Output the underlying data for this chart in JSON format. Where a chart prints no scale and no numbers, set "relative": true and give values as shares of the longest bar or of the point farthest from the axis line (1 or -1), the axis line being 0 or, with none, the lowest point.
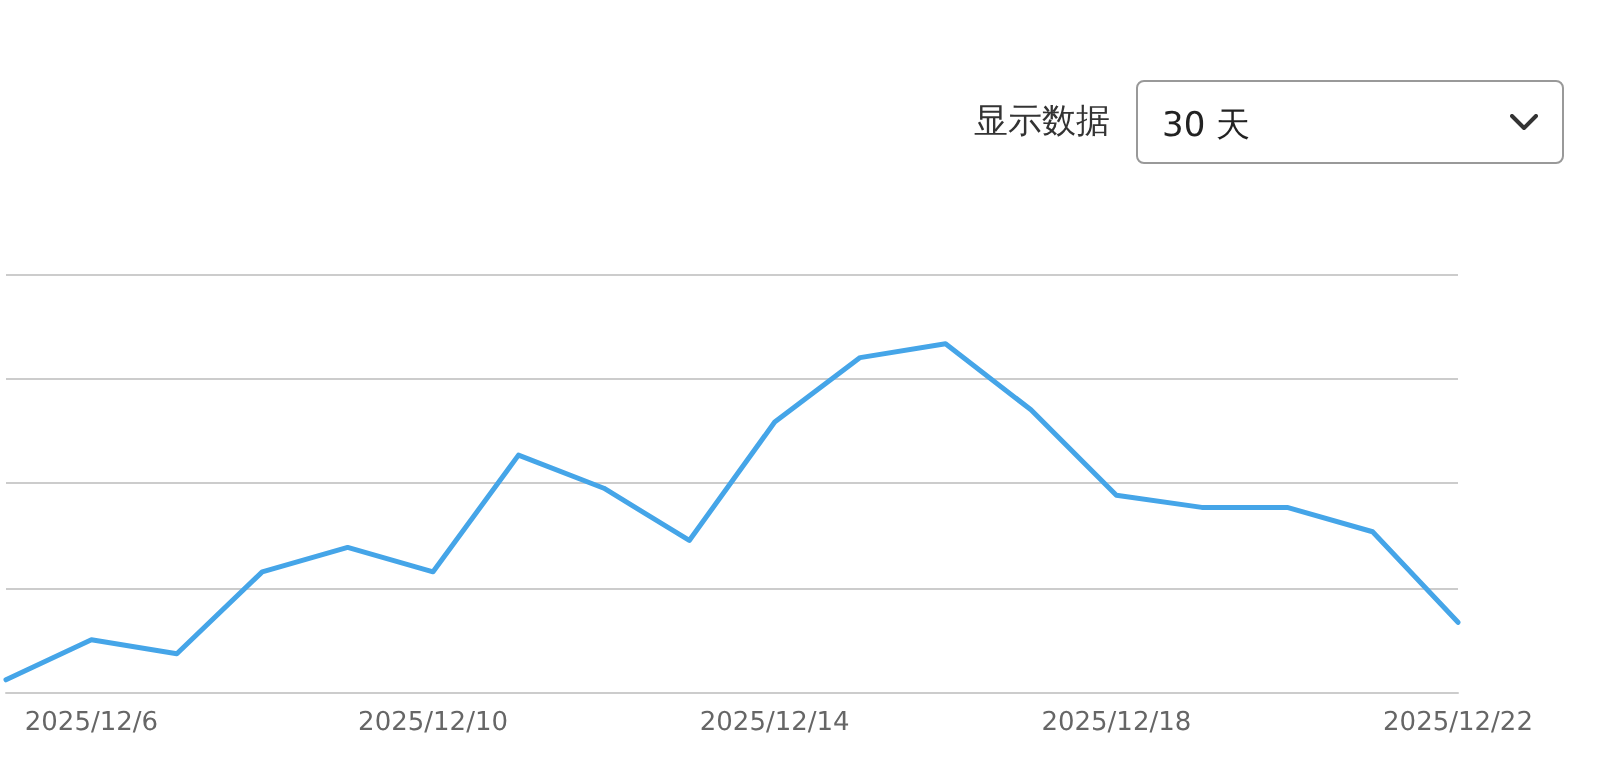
{
  "chart_data": {
    "type": "line",
    "relative": true,
    "categories": [
      null,
      "2025/12/6",
      null,
      null,
      null,
      "2025/12/10",
      null,
      null,
      null,
      "2025/12/14",
      null,
      null,
      null,
      "2025/12/18",
      null,
      null,
      null,
      "2025/12/22"
    ],
    "series": [
      {
        "color": "#45a5e8",
        "values": [
          0.035,
          0.15,
          0.11,
          0.345,
          0.415,
          0.345,
          0.68,
          0.585,
          0.435,
          0.775,
          0.96,
          1,
          0.81,
          0.565,
          0.53,
          0.53,
          0.46,
          0.2
        ]
      }
    ],
    "grid": "y",
    "marker": "none",
    "line_style": "solid",
    "annotations": [
      "显示数据",
      "30 天"
    ]
  }
}
